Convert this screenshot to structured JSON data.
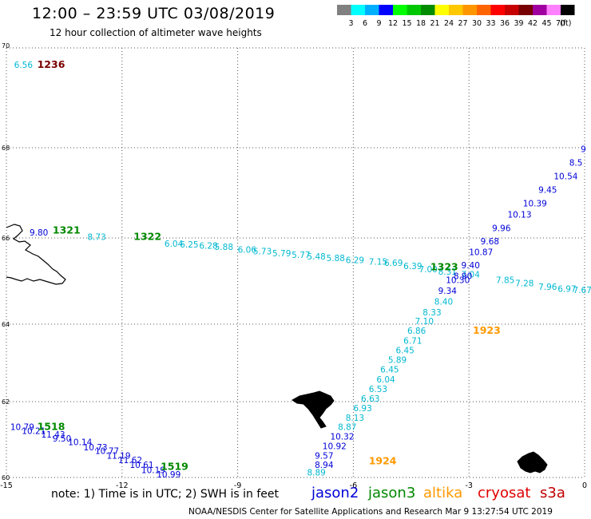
{
  "title": "12:00 – 23:59 UTC 03/08/2019",
  "subtitle": "12 hour collection of altimeter wave heights",
  "colorbar": {
    "unit": "(ft)",
    "labels": [
      "3",
      "6",
      "9",
      "12",
      "15",
      "18",
      "21",
      "24",
      "27",
      "30",
      "33",
      "36",
      "39",
      "42",
      "45",
      "70"
    ],
    "colors": [
      "#808080",
      "#00ffff",
      "#00b0ff",
      "#0000ff",
      "#00ff00",
      "#00c800",
      "#008c00",
      "#ffff00",
      "#ffc800",
      "#ff9600",
      "#ff6400",
      "#ff0000",
      "#c80000",
      "#780000",
      "#a000a0",
      "#ff80ff",
      "#000000"
    ]
  },
  "colors": {
    "jason2": "#0000d8",
    "jason3": "#008800",
    "altika": "#ff9900",
    "cryosat": "#e00000",
    "s3a": "#c00000",
    "low_values": "#00b8d0"
  },
  "axes": {
    "lon_ticks": [
      "-15",
      "-12",
      "-9",
      "-6",
      "-3",
      "0"
    ],
    "lat_ticks": [
      "60",
      "62",
      "64",
      "66",
      "68",
      "70"
    ],
    "lon_range": [
      -15,
      0
    ],
    "lat_range": [
      60,
      70
    ],
    "grid": "dotted"
  },
  "time_labels": [
    {
      "text": "1236",
      "lon": -14.2,
      "lat": 69.6,
      "sat": "cryosat_dark"
    },
    {
      "text": "1321",
      "lon": -13.8,
      "lat": 66.1,
      "sat": "jason3"
    },
    {
      "text": "1322",
      "lon": -11.7,
      "lat": 65.95,
      "sat": "jason3"
    },
    {
      "text": "1323",
      "lon": -4.0,
      "lat": 65.25,
      "sat": "jason3"
    },
    {
      "text": "1923",
      "lon": -2.9,
      "lat": 63.75,
      "sat": "altika"
    },
    {
      "text": "1924",
      "lon": -5.6,
      "lat": 60.35,
      "sat": "altika"
    },
    {
      "text": "1518",
      "lon": -14.2,
      "lat": 61.25,
      "sat": "jason3"
    },
    {
      "text": "1519",
      "lon": -11.0,
      "lat": 60.2,
      "sat": "jason3"
    }
  ],
  "tracks": [
    {
      "name": "top-left",
      "points": [
        {
          "v": "6.56",
          "lon": -14.8,
          "lat": 69.6,
          "c": "low"
        }
      ]
    },
    {
      "name": "jason3-crossing",
      "points": [
        {
          "v": "9.80",
          "lon": -14.4,
          "lat": 66.05,
          "c": "high"
        },
        {
          "v": "8.73",
          "lon": -12.9,
          "lat": 65.95,
          "c": "low"
        },
        {
          "v": "6.04",
          "lon": -10.9,
          "lat": 65.8,
          "c": "low"
        },
        {
          "v": "6.25",
          "lon": -10.5,
          "lat": 65.78,
          "c": "low"
        },
        {
          "v": "6.28",
          "lon": -10.0,
          "lat": 65.75,
          "c": "low"
        },
        {
          "v": "5.88",
          "lon": -9.6,
          "lat": 65.72,
          "c": "low"
        },
        {
          "v": "6.06",
          "lon": -9.0,
          "lat": 65.66,
          "c": "low"
        },
        {
          "v": "5.73",
          "lon": -8.6,
          "lat": 65.62,
          "c": "low"
        },
        {
          "v": "5.79",
          "lon": -8.1,
          "lat": 65.57,
          "c": "low"
        },
        {
          "v": "5.77",
          "lon": -7.6,
          "lat": 65.54,
          "c": "low"
        },
        {
          "v": "5.48",
          "lon": -7.2,
          "lat": 65.5,
          "c": "low"
        },
        {
          "v": "5.88",
          "lon": -6.7,
          "lat": 65.46,
          "c": "low"
        },
        {
          "v": "6.29",
          "lon": -6.2,
          "lat": 65.42,
          "c": "low"
        },
        {
          "v": "7.15",
          "lon": -5.6,
          "lat": 65.38,
          "c": "low"
        },
        {
          "v": "6.69",
          "lon": -5.2,
          "lat": 65.35,
          "c": "low"
        },
        {
          "v": "6.39",
          "lon": -4.7,
          "lat": 65.28,
          "c": "low"
        },
        {
          "v": "7.00",
          "lon": -4.3,
          "lat": 65.2,
          "c": "low"
        },
        {
          "v": "8.31",
          "lon": -3.8,
          "lat": 65.15,
          "c": "low"
        },
        {
          "v": "7.04",
          "lon": -3.2,
          "lat": 65.08,
          "c": "low"
        },
        {
          "v": "7.85",
          "lon": -2.3,
          "lat": 64.95,
          "c": "low"
        },
        {
          "v": "7.28",
          "lon": -1.8,
          "lat": 64.88,
          "c": "low"
        },
        {
          "v": "7.96",
          "lon": -1.2,
          "lat": 64.8,
          "c": "low"
        },
        {
          "v": "6.97",
          "lon": -0.7,
          "lat": 64.75,
          "c": "low"
        },
        {
          "v": "7.67",
          "lon": -0.3,
          "lat": 64.72,
          "c": "low"
        }
      ]
    },
    {
      "name": "jason2-northeast",
      "points": [
        {
          "v": "9",
          "lon": -0.1,
          "lat": 67.9,
          "c": "high"
        },
        {
          "v": "8.5",
          "lon": -0.4,
          "lat": 67.6,
          "c": "high"
        },
        {
          "v": "10.54",
          "lon": -0.8,
          "lat": 67.3,
          "c": "high"
        },
        {
          "v": "9.45",
          "lon": -1.2,
          "lat": 67.0,
          "c": "high"
        },
        {
          "v": "10.39",
          "lon": -1.6,
          "lat": 66.7,
          "c": "high"
        },
        {
          "v": "10.13",
          "lon": -2.0,
          "lat": 66.45,
          "c": "high"
        },
        {
          "v": "9.96",
          "lon": -2.4,
          "lat": 66.15,
          "c": "high"
        },
        {
          "v": "9.68",
          "lon": -2.7,
          "lat": 65.85,
          "c": "high"
        },
        {
          "v": "10.87",
          "lon": -3.0,
          "lat": 65.6,
          "c": "high"
        },
        {
          "v": "9.40",
          "lon": -3.2,
          "lat": 65.3,
          "c": "high"
        },
        {
          "v": "8.90",
          "lon": -3.4,
          "lat": 65.05,
          "c": "high"
        },
        {
          "v": "10.30",
          "lon": -3.6,
          "lat": 64.95,
          "c": "high"
        },
        {
          "v": "9.34",
          "lon": -3.8,
          "lat": 64.7,
          "c": "high"
        }
      ]
    },
    {
      "name": "altika-southwest",
      "points": [
        {
          "v": "8.40",
          "lon": -3.9,
          "lat": 64.45,
          "c": "low"
        },
        {
          "v": "8.33",
          "lon": -4.2,
          "lat": 64.2,
          "c": "low"
        },
        {
          "v": "7.10",
          "lon": -4.4,
          "lat": 64.0,
          "c": "low"
        },
        {
          "v": "6.86",
          "lon": -4.6,
          "lat": 63.75,
          "c": "low"
        },
        {
          "v": "6.71",
          "lon": -4.7,
          "lat": 63.5,
          "c": "low"
        },
        {
          "v": "6.45",
          "lon": -4.9,
          "lat": 63.25,
          "c": "low"
        },
        {
          "v": "5.89",
          "lon": -5.1,
          "lat": 63.0,
          "c": "low"
        },
        {
          "v": "6.45",
          "lon": -5.3,
          "lat": 62.75,
          "c": "low"
        },
        {
          "v": "6.04",
          "lon": -5.4,
          "lat": 62.5,
          "c": "low"
        },
        {
          "v": "6.53",
          "lon": -5.6,
          "lat": 62.25,
          "c": "low"
        },
        {
          "v": "6.63",
          "lon": -5.8,
          "lat": 62.0,
          "c": "low"
        },
        {
          "v": "6.93",
          "lon": -6.0,
          "lat": 61.75,
          "c": "low"
        },
        {
          "v": "8.13",
          "lon": -6.2,
          "lat": 61.5,
          "c": "low"
        },
        {
          "v": "8.87",
          "lon": -6.4,
          "lat": 61.25,
          "c": "low"
        },
        {
          "v": "10.32",
          "lon": -6.6,
          "lat": 61.0,
          "c": "high"
        },
        {
          "v": "10.92",
          "lon": -6.8,
          "lat": 60.75,
          "c": "high"
        },
        {
          "v": "9.57",
          "lon": -7.0,
          "lat": 60.5,
          "c": "high"
        },
        {
          "v": "8.94",
          "lon": -7.0,
          "lat": 60.25,
          "c": "high"
        },
        {
          "v": "8.89",
          "lon": -7.2,
          "lat": 60.05,
          "c": "low"
        }
      ]
    },
    {
      "name": "jason2-southwest",
      "points": [
        {
          "v": "10.79",
          "lon": -14.9,
          "lat": 61.25,
          "c": "high"
        },
        {
          "v": "10.21",
          "lon": -14.6,
          "lat": 61.15,
          "c": "high"
        },
        {
          "v": "11.43",
          "lon": -14.1,
          "lat": 61.05,
          "c": "high"
        },
        {
          "v": "9.50",
          "lon": -13.8,
          "lat": 60.95,
          "c": "high"
        },
        {
          "v": "10.14",
          "lon": -13.4,
          "lat": 60.85,
          "c": "high"
        },
        {
          "v": "10.73",
          "lon": -13.0,
          "lat": 60.72,
          "c": "high"
        },
        {
          "v": "10.77",
          "lon": -12.7,
          "lat": 60.62,
          "c": "high"
        },
        {
          "v": "11.19",
          "lon": -12.4,
          "lat": 60.5,
          "c": "high"
        },
        {
          "v": "11.62",
          "lon": -12.1,
          "lat": 60.38,
          "c": "high"
        },
        {
          "v": "10.61",
          "lon": -11.8,
          "lat": 60.25,
          "c": "high"
        },
        {
          "v": "10.19",
          "lon": -11.5,
          "lat": 60.12,
          "c": "high"
        },
        {
          "v": "10.99",
          "lon": -11.1,
          "lat": 60.0,
          "c": "high"
        }
      ]
    }
  ],
  "legend": {
    "note": "note: 1) Time is in UTC; 2) SWH is in feet",
    "jason2": "jason2",
    "jason3": "jason3",
    "altika": "altika",
    "cryosat": "cryosat",
    "s3a": "s3a"
  },
  "credit": "NOAA/NESDIS Center for Satellite Applications and Research   Mar  9 13:27:54 UTC 2019"
}
